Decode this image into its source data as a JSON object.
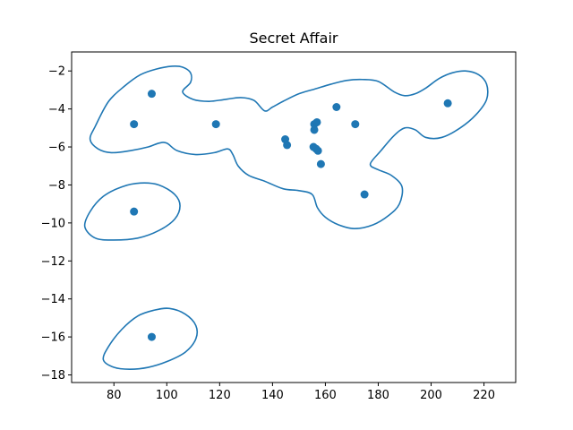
{
  "chart_data": {
    "type": "scatter",
    "title": "Secret Affair",
    "xlabel": "",
    "ylabel": "",
    "xlim": [
      64,
      232
    ],
    "ylim": [
      -18.4,
      -1.0
    ],
    "xticks": [
      80,
      100,
      120,
      140,
      160,
      180,
      200,
      220
    ],
    "yticks": [
      -2,
      -4,
      -6,
      -8,
      -10,
      -12,
      -14,
      -16,
      -18
    ],
    "xtick_labels": [
      "80",
      "100",
      "120",
      "140",
      "160",
      "180",
      "200",
      "220"
    ],
    "ytick_labels": [
      "−2",
      "−4",
      "−6",
      "−8",
      "−10",
      "−12",
      "−14",
      "−16",
      "−18"
    ],
    "grid": false,
    "color": "#1f77b4",
    "points": [
      {
        "x": 94.3,
        "y": -3.2
      },
      {
        "x": 87.6,
        "y": -4.8
      },
      {
        "x": 118.6,
        "y": -4.8
      },
      {
        "x": 87.6,
        "y": -9.4
      },
      {
        "x": 94.3,
        "y": -16.0
      },
      {
        "x": 144.8,
        "y": -5.6
      },
      {
        "x": 145.5,
        "y": -5.9
      },
      {
        "x": 155.8,
        "y": -4.8
      },
      {
        "x": 156.8,
        "y": -4.7
      },
      {
        "x": 155.8,
        "y": -5.1
      },
      {
        "x": 155.5,
        "y": -6.0
      },
      {
        "x": 156.5,
        "y": -6.1
      },
      {
        "x": 157.2,
        "y": -6.2
      },
      {
        "x": 158.3,
        "y": -6.9
      },
      {
        "x": 164.2,
        "y": -3.9
      },
      {
        "x": 171.3,
        "y": -4.8
      },
      {
        "x": 174.8,
        "y": -8.5
      },
      {
        "x": 206.3,
        "y": -3.7
      }
    ],
    "contours": [
      [
        [
          73,
          -4.9
        ],
        [
          78,
          -3.6
        ],
        [
          84,
          -2.8
        ],
        [
          90,
          -2.2
        ],
        [
          96,
          -1.9
        ],
        [
          102,
          -1.75
        ],
        [
          106,
          -1.8
        ],
        [
          109,
          -2.1
        ],
        [
          109,
          -2.6
        ],
        [
          106,
          -3.1
        ],
        [
          110,
          -3.5
        ],
        [
          116,
          -3.6
        ],
        [
          122,
          -3.5
        ],
        [
          128,
          -3.4
        ],
        [
          133,
          -3.55
        ],
        [
          137,
          -4.1
        ],
        [
          140,
          -3.9
        ],
        [
          144,
          -3.6
        ],
        [
          150,
          -3.2
        ],
        [
          156,
          -2.95
        ],
        [
          162,
          -2.7
        ],
        [
          168,
          -2.5
        ],
        [
          174,
          -2.45
        ],
        [
          180,
          -2.55
        ],
        [
          186,
          -3.1
        ],
        [
          190,
          -3.3
        ],
        [
          194,
          -3.2
        ],
        [
          198,
          -2.9
        ],
        [
          203,
          -2.4
        ],
        [
          208,
          -2.1
        ],
        [
          213,
          -2.0
        ],
        [
          218,
          -2.2
        ],
        [
          221,
          -2.7
        ],
        [
          221,
          -3.5
        ],
        [
          217,
          -4.3
        ],
        [
          211,
          -5.0
        ],
        [
          204,
          -5.5
        ],
        [
          198,
          -5.5
        ],
        [
          194,
          -5.1
        ],
        [
          190,
          -5.0
        ],
        [
          186,
          -5.4
        ],
        [
          181,
          -6.2
        ],
        [
          177,
          -6.9
        ],
        [
          180,
          -7.2
        ],
        [
          185,
          -7.5
        ],
        [
          189,
          -8.1
        ],
        [
          188,
          -9.0
        ],
        [
          184,
          -9.6
        ],
        [
          178,
          -10.1
        ],
        [
          171,
          -10.3
        ],
        [
          165,
          -10.1
        ],
        [
          160,
          -9.7
        ],
        [
          157,
          -9.2
        ],
        [
          155,
          -8.5
        ],
        [
          150,
          -8.3
        ],
        [
          144,
          -8.2
        ],
        [
          137,
          -7.8
        ],
        [
          131,
          -7.5
        ],
        [
          127,
          -7.0
        ],
        [
          125,
          -6.4
        ],
        [
          123,
          -6.1
        ],
        [
          118,
          -6.3
        ],
        [
          111,
          -6.4
        ],
        [
          104,
          -6.2
        ],
        [
          100,
          -5.8
        ],
        [
          97,
          -5.8
        ],
        [
          93,
          -6.0
        ],
        [
          86,
          -6.2
        ],
        [
          79,
          -6.3
        ],
        [
          74,
          -6.1
        ],
        [
          71,
          -5.6
        ],
        [
          73,
          -4.9
        ]
      ],
      [
        [
          69,
          -10.2
        ],
        [
          71,
          -9.4
        ],
        [
          76,
          -8.6
        ],
        [
          83,
          -8.1
        ],
        [
          90,
          -7.9
        ],
        [
          97,
          -8.0
        ],
        [
          103,
          -8.5
        ],
        [
          105,
          -9.1
        ],
        [
          103,
          -9.8
        ],
        [
          97,
          -10.4
        ],
        [
          89,
          -10.8
        ],
        [
          80,
          -10.9
        ],
        [
          73,
          -10.8
        ],
        [
          69,
          -10.2
        ]
      ],
      [
        [
          76,
          -17.2
        ],
        [
          78,
          -16.5
        ],
        [
          83,
          -15.6
        ],
        [
          89,
          -14.9
        ],
        [
          95,
          -14.6
        ],
        [
          101,
          -14.5
        ],
        [
          107,
          -14.8
        ],
        [
          111,
          -15.4
        ],
        [
          111,
          -16.1
        ],
        [
          107,
          -16.8
        ],
        [
          100,
          -17.3
        ],
        [
          93,
          -17.6
        ],
        [
          86,
          -17.7
        ],
        [
          80,
          -17.6
        ],
        [
          76,
          -17.2
        ]
      ]
    ]
  }
}
